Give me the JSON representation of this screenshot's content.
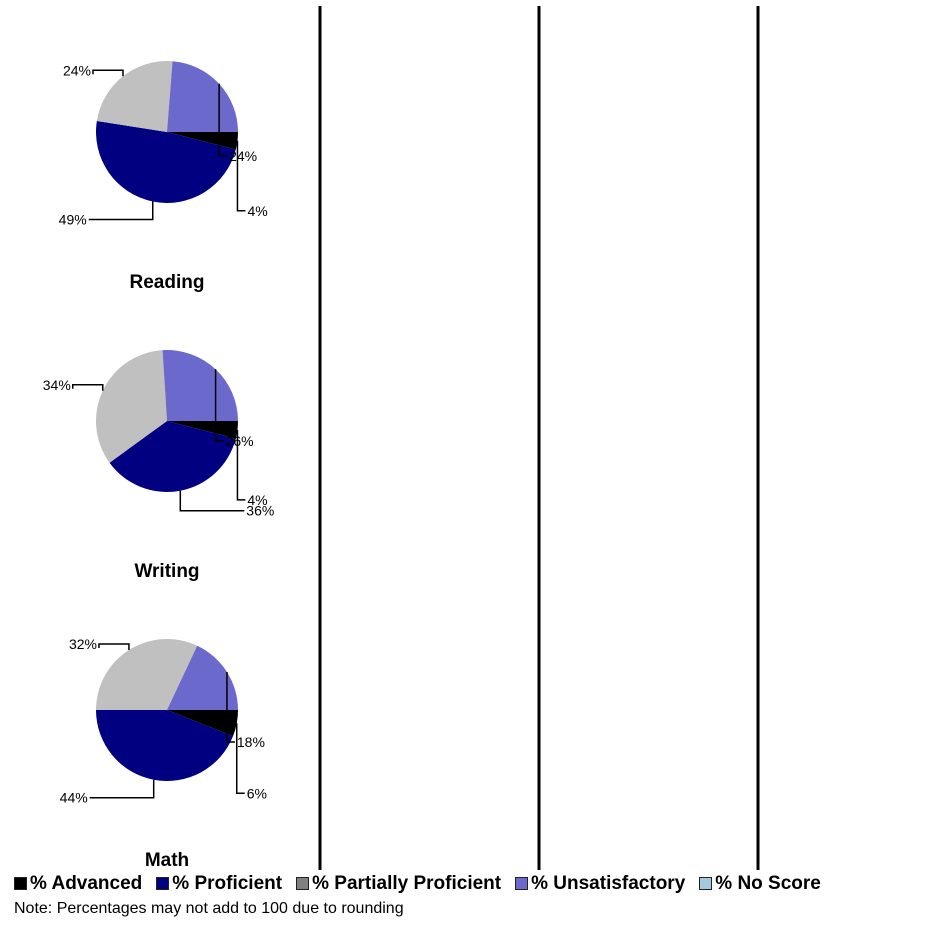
{
  "chart_data": {
    "type": "pie",
    "colors": {
      "% Advanced": "#000000",
      "% Proficient": "#000080",
      "% Partially Proficient": "#c0c0c0",
      "% Unsatisfactory": "#6b69cc",
      "% No Score": "#a6c8de"
    },
    "legend": [
      {
        "name": "% Advanced",
        "color": "#000000"
      },
      {
        "name": "% Proficient",
        "color": "#000080"
      },
      {
        "name": "% Partially Proficient",
        "color": "#808080"
      },
      {
        "name": "% Unsatisfactory",
        "color": "#6b69cc"
      },
      {
        "name": "% No Score",
        "color": "#a6c8de"
      }
    ],
    "legend_position": "bottom",
    "charts": [
      {
        "title": "Reading",
        "slices": [
          {
            "name": "% Advanced",
            "value": 4,
            "label": "4%"
          },
          {
            "name": "% Proficient",
            "value": 49,
            "label": "49%"
          },
          {
            "name": "% Partially Proficient",
            "value": 24,
            "label": "24%"
          },
          {
            "name": "% Unsatisfactory",
            "value": 24,
            "label": "24%"
          }
        ]
      },
      {
        "title": "Writing",
        "slices": [
          {
            "name": "% Advanced",
            "value": 4,
            "label": "4%"
          },
          {
            "name": "% Proficient",
            "value": 36,
            "label": "36%"
          },
          {
            "name": "% Partially Proficient",
            "value": 34,
            "label": "34%"
          },
          {
            "name": "% Unsatisfactory",
            "value": 26,
            "label": "26%"
          }
        ]
      },
      {
        "title": "Math",
        "slices": [
          {
            "name": "% Advanced",
            "value": 6,
            "label": "6%"
          },
          {
            "name": "% Proficient",
            "value": 44,
            "label": "44%"
          },
          {
            "name": "% Partially Proficient",
            "value": 32,
            "label": "32%"
          },
          {
            "name": "% Unsatisfactory",
            "value": 18,
            "label": "18%"
          }
        ]
      }
    ]
  },
  "note": "Note: Percentages may not add to 100 due to rounding"
}
